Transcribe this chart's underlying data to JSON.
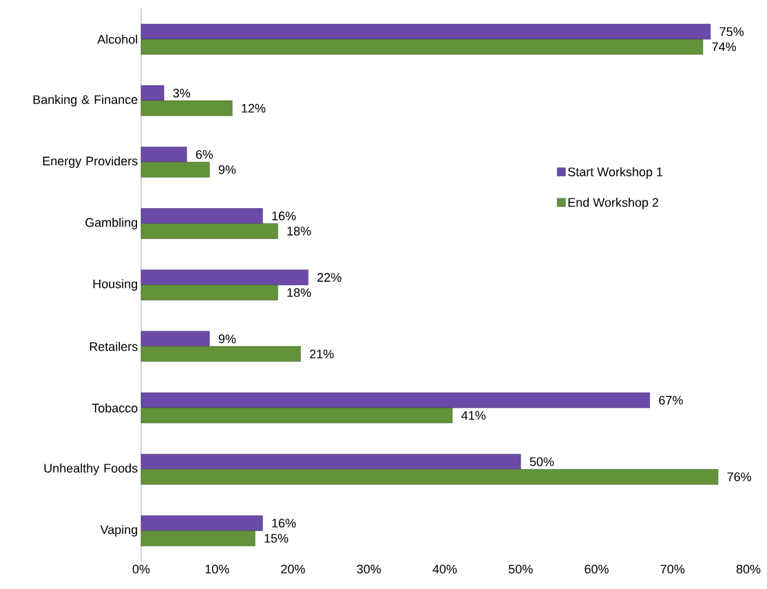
{
  "chart_data": {
    "type": "bar",
    "orientation": "horizontal",
    "categories": [
      "Alcohol",
      "Banking & Finance",
      "Energy Providers",
      "Gambling",
      "Housing",
      "Retailers",
      "Tobacco",
      "Unhealthy Foods",
      "Vaping"
    ],
    "series": [
      {
        "name": "Start Workshop 1",
        "color": "#6b4aa8",
        "values": [
          75,
          3,
          6,
          16,
          22,
          9,
          67,
          50,
          16
        ],
        "value_labels": [
          "75%",
          "3%",
          "6%",
          "16%",
          "22%",
          "9%",
          "67%",
          "50%",
          "16%"
        ]
      },
      {
        "name": "End Workshop 2",
        "color": "#62923a",
        "values": [
          74,
          12,
          9,
          18,
          18,
          21,
          41,
          76,
          15
        ],
        "value_labels": [
          "74%",
          "12%",
          "9%",
          "18%",
          "18%",
          "21%",
          "41%",
          "76%",
          "15%"
        ]
      }
    ],
    "xlim": [
      0,
      80
    ],
    "xticks": [
      {
        "value": 0,
        "label": "0%"
      },
      {
        "value": 10,
        "label": "10%"
      },
      {
        "value": 20,
        "label": "20%"
      },
      {
        "value": 30,
        "label": "30%"
      },
      {
        "value": 40,
        "label": "40%"
      },
      {
        "value": 50,
        "label": "50%"
      },
      {
        "value": 60,
        "label": "60%"
      },
      {
        "value": 70,
        "label": "70%"
      },
      {
        "value": 80,
        "label": "80%"
      }
    ],
    "legend": "right",
    "grid": false
  }
}
